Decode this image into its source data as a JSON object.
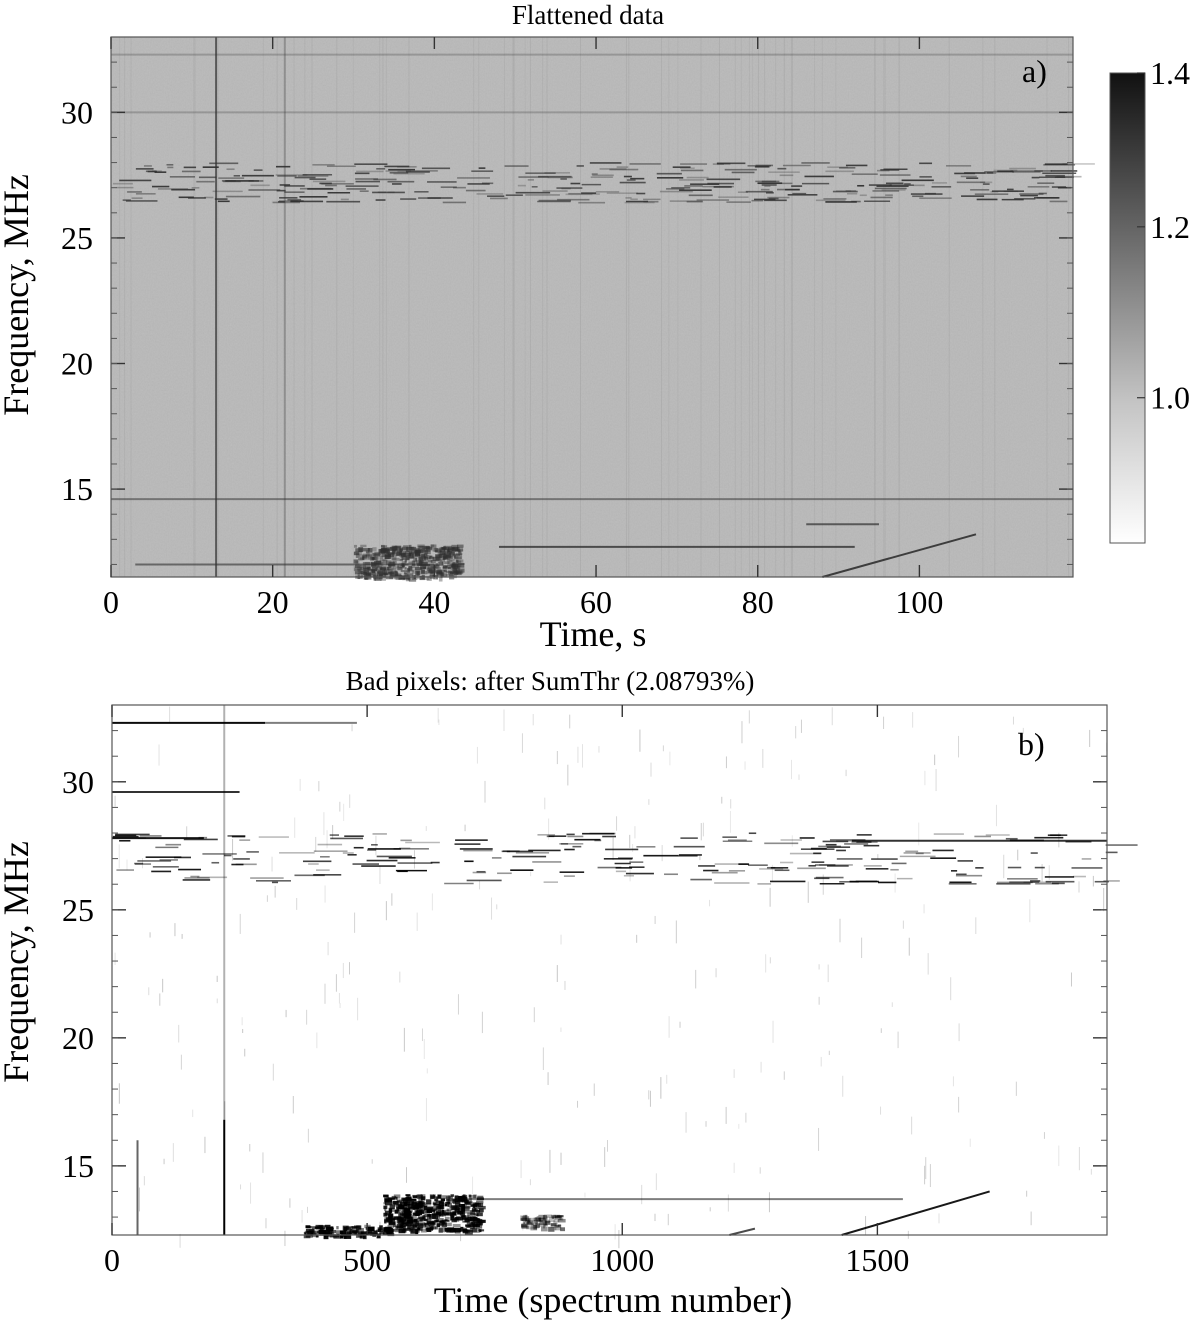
{
  "chart_data": [
    {
      "type": "heatmap",
      "panel_label": "a)",
      "title": "Flattened data",
      "xlabel": "Time, s",
      "ylabel": "Frequency, MHz",
      "xlim": [
        0,
        119
      ],
      "ylim": [
        11.5,
        33
      ],
      "x_ticks": [
        0,
        20,
        40,
        60,
        80,
        100
      ],
      "y_ticks": [
        15,
        20,
        25,
        30
      ],
      "colorbar": {
        "range": [
          0.83,
          1.38
        ],
        "ticks": [
          1.0,
          1.2,
          1.4
        ],
        "tick_labels": [
          "1.0",
          "1.2",
          "1.4"
        ],
        "cmap": "gray_reversed"
      },
      "colors": {
        "background": "#b9b9b9",
        "feature": "#303030"
      },
      "features": [
        {
          "kind": "rfi_band",
          "f_low": 26.4,
          "f_high": 28.0,
          "t_start": 0,
          "t_end": 119,
          "density": 0.35
        },
        {
          "kind": "line",
          "freq": 14.6,
          "t_start": 0,
          "t_end": 119,
          "level": 0.5
        },
        {
          "kind": "line",
          "freq": 12.7,
          "t_start": 48,
          "t_end": 92,
          "level": 0.8
        },
        {
          "kind": "line",
          "freq": 12.0,
          "t_start": 3,
          "t_end": 40,
          "level": 0.6
        },
        {
          "kind": "line",
          "freq": 13.6,
          "t_start": 86,
          "t_end": 95,
          "level": 0.7
        },
        {
          "kind": "line",
          "freq": 30.0,
          "t_start": 0,
          "t_end": 119,
          "level": 0.25
        },
        {
          "kind": "line",
          "freq": 32.3,
          "t_start": 0,
          "t_end": 119,
          "level": 0.25
        },
        {
          "kind": "vline",
          "time": 13.0,
          "f_low": 11.5,
          "f_high": 33,
          "level": 0.7
        },
        {
          "kind": "vline",
          "time": 21.5,
          "f_low": 11.5,
          "f_high": 33,
          "level": 0.3
        },
        {
          "kind": "blob",
          "t_start": 30,
          "t_end": 43,
          "f_low": 11.5,
          "f_high": 12.8,
          "level": 0.7
        },
        {
          "kind": "drift",
          "t0": 88,
          "f0": 11.5,
          "t1": 107,
          "f1": 13.2,
          "level": 0.9
        }
      ]
    },
    {
      "type": "heatmap",
      "panel_label": "b)",
      "title": "Bad pixels: after SumThr (2.08793%)",
      "xlabel": "Time (spectrum number)",
      "ylabel": "Frequency, MHz",
      "xlim": [
        0,
        1950
      ],
      "ylim": [
        12.3,
        33
      ],
      "x_ticks": [
        0,
        500,
        1000,
        1500
      ],
      "y_ticks": [
        15,
        20,
        25,
        30
      ],
      "colors": {
        "background": "#ffffff",
        "feature": "#000000"
      },
      "features": [
        {
          "kind": "rfi_band",
          "f_low": 26.0,
          "f_high": 28.0,
          "t_start": 0,
          "t_end": 1950,
          "density": 0.25
        },
        {
          "kind": "line",
          "freq": 32.3,
          "t_start": 0,
          "t_end": 300,
          "level": 0.95
        },
        {
          "kind": "line",
          "freq": 32.3,
          "t_start": 300,
          "t_end": 480,
          "level": 0.5
        },
        {
          "kind": "line",
          "freq": 29.6,
          "t_start": 0,
          "t_end": 250,
          "level": 0.8
        },
        {
          "kind": "line",
          "freq": 27.8,
          "t_start": 0,
          "t_end": 180,
          "level": 0.9
        },
        {
          "kind": "line",
          "freq": 27.7,
          "t_start": 1450,
          "t_end": 1950,
          "level": 0.8
        },
        {
          "kind": "line",
          "freq": 13.7,
          "t_start": 700,
          "t_end": 1550,
          "level": 0.5
        },
        {
          "kind": "vline",
          "time": 220,
          "f_low": 12.3,
          "f_high": 16.8,
          "level": 1.0
        },
        {
          "kind": "vline",
          "time": 220,
          "f_low": 16.8,
          "f_high": 33,
          "level": 0.3
        },
        {
          "kind": "vline",
          "time": 50,
          "f_low": 12.3,
          "f_high": 16.0,
          "level": 0.6
        },
        {
          "kind": "blob",
          "t_start": 530,
          "t_end": 720,
          "f_low": 12.5,
          "f_high": 13.9,
          "level": 1.0
        },
        {
          "kind": "blob",
          "t_start": 370,
          "t_end": 540,
          "f_low": 12.3,
          "f_high": 12.7,
          "level": 1.0
        },
        {
          "kind": "blob",
          "t_start": 800,
          "t_end": 880,
          "f_low": 12.6,
          "f_high": 13.1,
          "level": 0.6
        },
        {
          "kind": "drift",
          "t0": 1430,
          "f0": 12.3,
          "t1": 1720,
          "f1": 14.0,
          "level": 0.9
        },
        {
          "kind": "drift",
          "t0": 1210,
          "f0": 12.3,
          "t1": 1260,
          "f1": 12.55,
          "level": 0.7
        }
      ]
    }
  ]
}
